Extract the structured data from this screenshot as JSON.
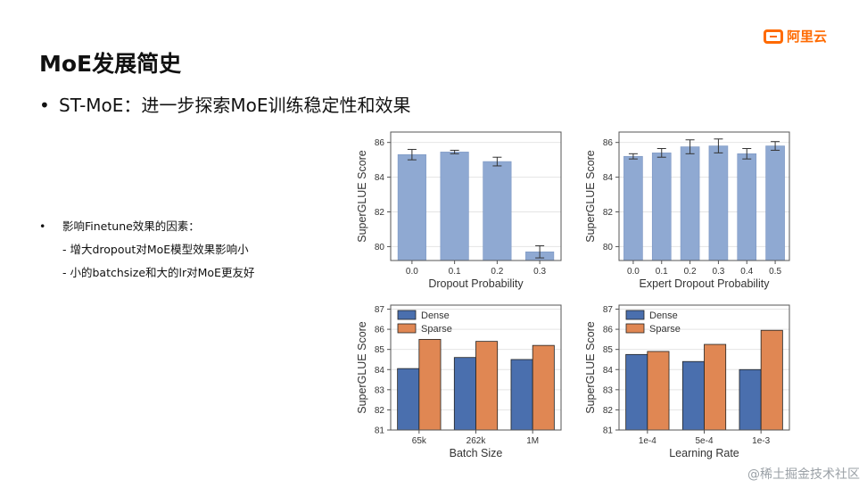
{
  "brand": {
    "name": "阿里云",
    "accent": "#ff6a00"
  },
  "slide": {
    "title": "MoE发展简史",
    "subtitle_bullet": "•",
    "subtitle": "ST-MoE：进一步探索MoE训练稳定性和效果",
    "notes": {
      "bullet": "•",
      "heading": "影响Finetune效果的因素：",
      "items": [
        "- 增大dropout对MoE模型效果影响小",
        "- 小的batchsize和大的lr对MoE更友好"
      ]
    }
  },
  "watermark": "@稀土掘金技术社区",
  "colors": {
    "single_bar": "#8fa9d2",
    "dense": "#4a6fae",
    "sparse": "#e08753"
  },
  "chart_data": [
    {
      "type": "bar",
      "categories": [
        "0.0",
        "0.1",
        "0.2",
        "0.3"
      ],
      "values": [
        85.3,
        85.45,
        84.9,
        79.7
      ],
      "errors": [
        0.3,
        0.1,
        0.25,
        0.35
      ],
      "xlabel": "Dropout Probability",
      "ylabel": "SuperGLUE Score",
      "ylim": [
        79.2,
        86.6
      ],
      "yticks": [
        80,
        82,
        84,
        86
      ]
    },
    {
      "type": "bar",
      "categories": [
        "0.0",
        "0.1",
        "0.2",
        "0.3",
        "0.4",
        "0.5"
      ],
      "values": [
        85.2,
        85.4,
        85.75,
        85.8,
        85.35,
        85.8
      ],
      "errors": [
        0.15,
        0.25,
        0.4,
        0.4,
        0.3,
        0.25
      ],
      "xlabel": "Expert Dropout Probability",
      "ylabel": "SuperGLUE Score",
      "ylim": [
        79.2,
        86.6
      ],
      "yticks": [
        80,
        82,
        84,
        86
      ]
    },
    {
      "type": "bar",
      "categories": [
        "65k",
        "262k",
        "1M"
      ],
      "series": [
        {
          "name": "Dense",
          "values": [
            84.05,
            84.6,
            84.5
          ]
        },
        {
          "name": "Sparse",
          "values": [
            85.5,
            85.4,
            85.2
          ]
        }
      ],
      "xlabel": "Batch Size",
      "ylabel": "SuperGLUE Score",
      "ylim": [
        81,
        87.2
      ],
      "yticks": [
        81,
        82,
        83,
        84,
        85,
        86,
        87
      ],
      "legend": "top-left"
    },
    {
      "type": "bar",
      "categories": [
        "1e-4",
        "5e-4",
        "1e-3"
      ],
      "series": [
        {
          "name": "Dense",
          "values": [
            84.75,
            84.4,
            84.0
          ]
        },
        {
          "name": "Sparse",
          "values": [
            84.9,
            85.25,
            85.95
          ]
        }
      ],
      "xlabel": "Learning Rate",
      "ylabel": "SuperGLUE Score",
      "ylim": [
        81,
        87.2
      ],
      "yticks": [
        81,
        82,
        83,
        84,
        85,
        86,
        87
      ],
      "legend": "top-left"
    }
  ]
}
